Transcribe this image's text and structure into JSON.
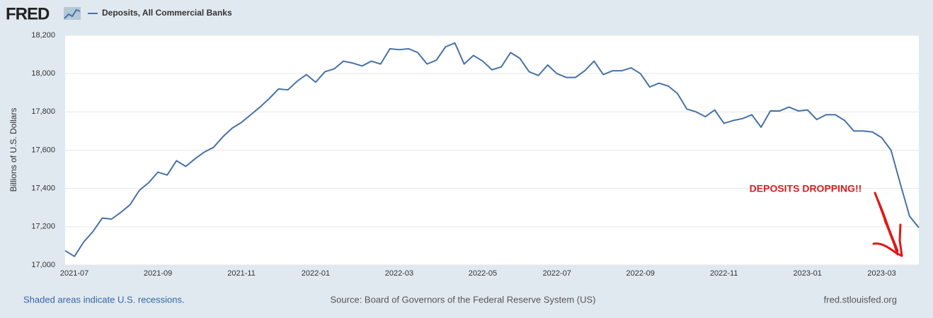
{
  "header": {
    "logo": "FRED"
  },
  "chart_data": {
    "type": "line",
    "series": [
      {
        "name": "Deposits, All Commercial Banks",
        "color": "#4572a7",
        "values": [
          17075,
          17045,
          17120,
          17175,
          17245,
          17240,
          17275,
          17315,
          17390,
          17430,
          17485,
          17470,
          17545,
          17515,
          17555,
          17590,
          17615,
          17670,
          17715,
          17745,
          17785,
          17825,
          17870,
          17920,
          17915,
          17960,
          17995,
          17955,
          18010,
          18025,
          18065,
          18055,
          18040,
          18065,
          18050,
          18130,
          18125,
          18130,
          18110,
          18050,
          18070,
          18140,
          18160,
          18050,
          18095,
          18065,
          18020,
          18035,
          18110,
          18080,
          18010,
          17990,
          18045,
          18000,
          17980,
          17980,
          18015,
          18065,
          17995,
          18015,
          18015,
          18030,
          18000,
          17930,
          17950,
          17935,
          17895,
          17815,
          17800,
          17775,
          17810,
          17740,
          17755,
          17765,
          17785,
          17720,
          17805,
          17805,
          17825,
          17805,
          17810,
          17760,
          17785,
          17785,
          17755,
          17700,
          17700,
          17695,
          17665,
          17600,
          17425,
          17255,
          17195
        ]
      }
    ],
    "categories": [
      null,
      "2021-07",
      null,
      null,
      null,
      null,
      null,
      null,
      null,
      null,
      "2021-09",
      null,
      null,
      null,
      null,
      null,
      null,
      null,
      null,
      "2021-11",
      null,
      null,
      null,
      null,
      null,
      null,
      null,
      "2022-01",
      null,
      null,
      null,
      null,
      null,
      null,
      null,
      null,
      "2022-03",
      null,
      null,
      null,
      null,
      null,
      null,
      null,
      null,
      "2022-05",
      null,
      null,
      null,
      null,
      null,
      null,
      null,
      "2022-07",
      null,
      null,
      null,
      null,
      null,
      null,
      null,
      null,
      "2022-09",
      null,
      null,
      null,
      null,
      null,
      null,
      null,
      null,
      "2022-11",
      null,
      null,
      null,
      null,
      null,
      null,
      null,
      null,
      "2023-01",
      null,
      null,
      null,
      null,
      null,
      null,
      null,
      "2023-03",
      null,
      null,
      null,
      null
    ],
    "ylabel": "Billions of U.S. Dollars",
    "ylim": [
      17000,
      18200
    ],
    "yticks": [
      {
        "value": 17000,
        "label": "17,000"
      },
      {
        "value": 17200,
        "label": "17,200"
      },
      {
        "value": 17400,
        "label": "17,400"
      },
      {
        "value": 17600,
        "label": "17,600"
      },
      {
        "value": 17800,
        "label": "17,800"
      },
      {
        "value": 18000,
        "label": "18,000"
      },
      {
        "value": 18200,
        "label": "18,200"
      }
    ],
    "grid": true,
    "annotation": "DEPOSITS DROPPING!!"
  },
  "footer": {
    "note": "Shaded areas indicate U.S. recessions.",
    "source": "Source: Board of Governors of the Federal Reserve System (US)",
    "site": "fred.stlouisfed.org"
  }
}
